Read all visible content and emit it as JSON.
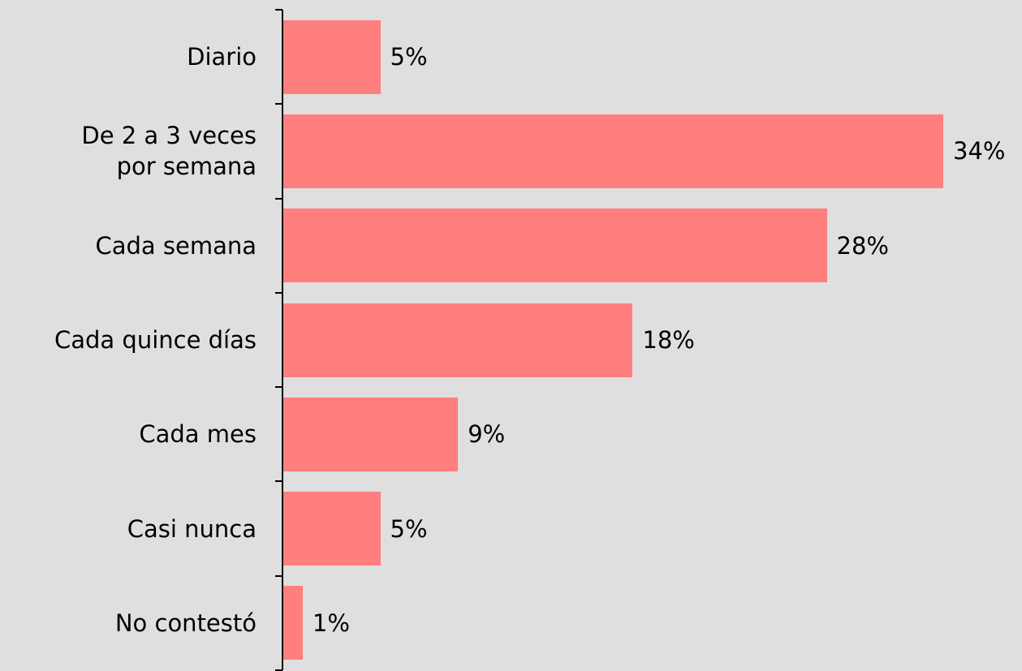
{
  "chart_data": {
    "type": "hbar",
    "categories": [
      "Diario",
      "De 2 a 3 veces\npor semana",
      "Cada semana",
      "Cada quince días",
      "Cada mes",
      "Casi nunca",
      "No contestó"
    ],
    "values": [
      5,
      34,
      28,
      18,
      9,
      5,
      1
    ],
    "value_labels": [
      "5%",
      "34%",
      "28%",
      "18%",
      "9%",
      "5%",
      "1%"
    ],
    "color": "#ff7f7f"
  }
}
